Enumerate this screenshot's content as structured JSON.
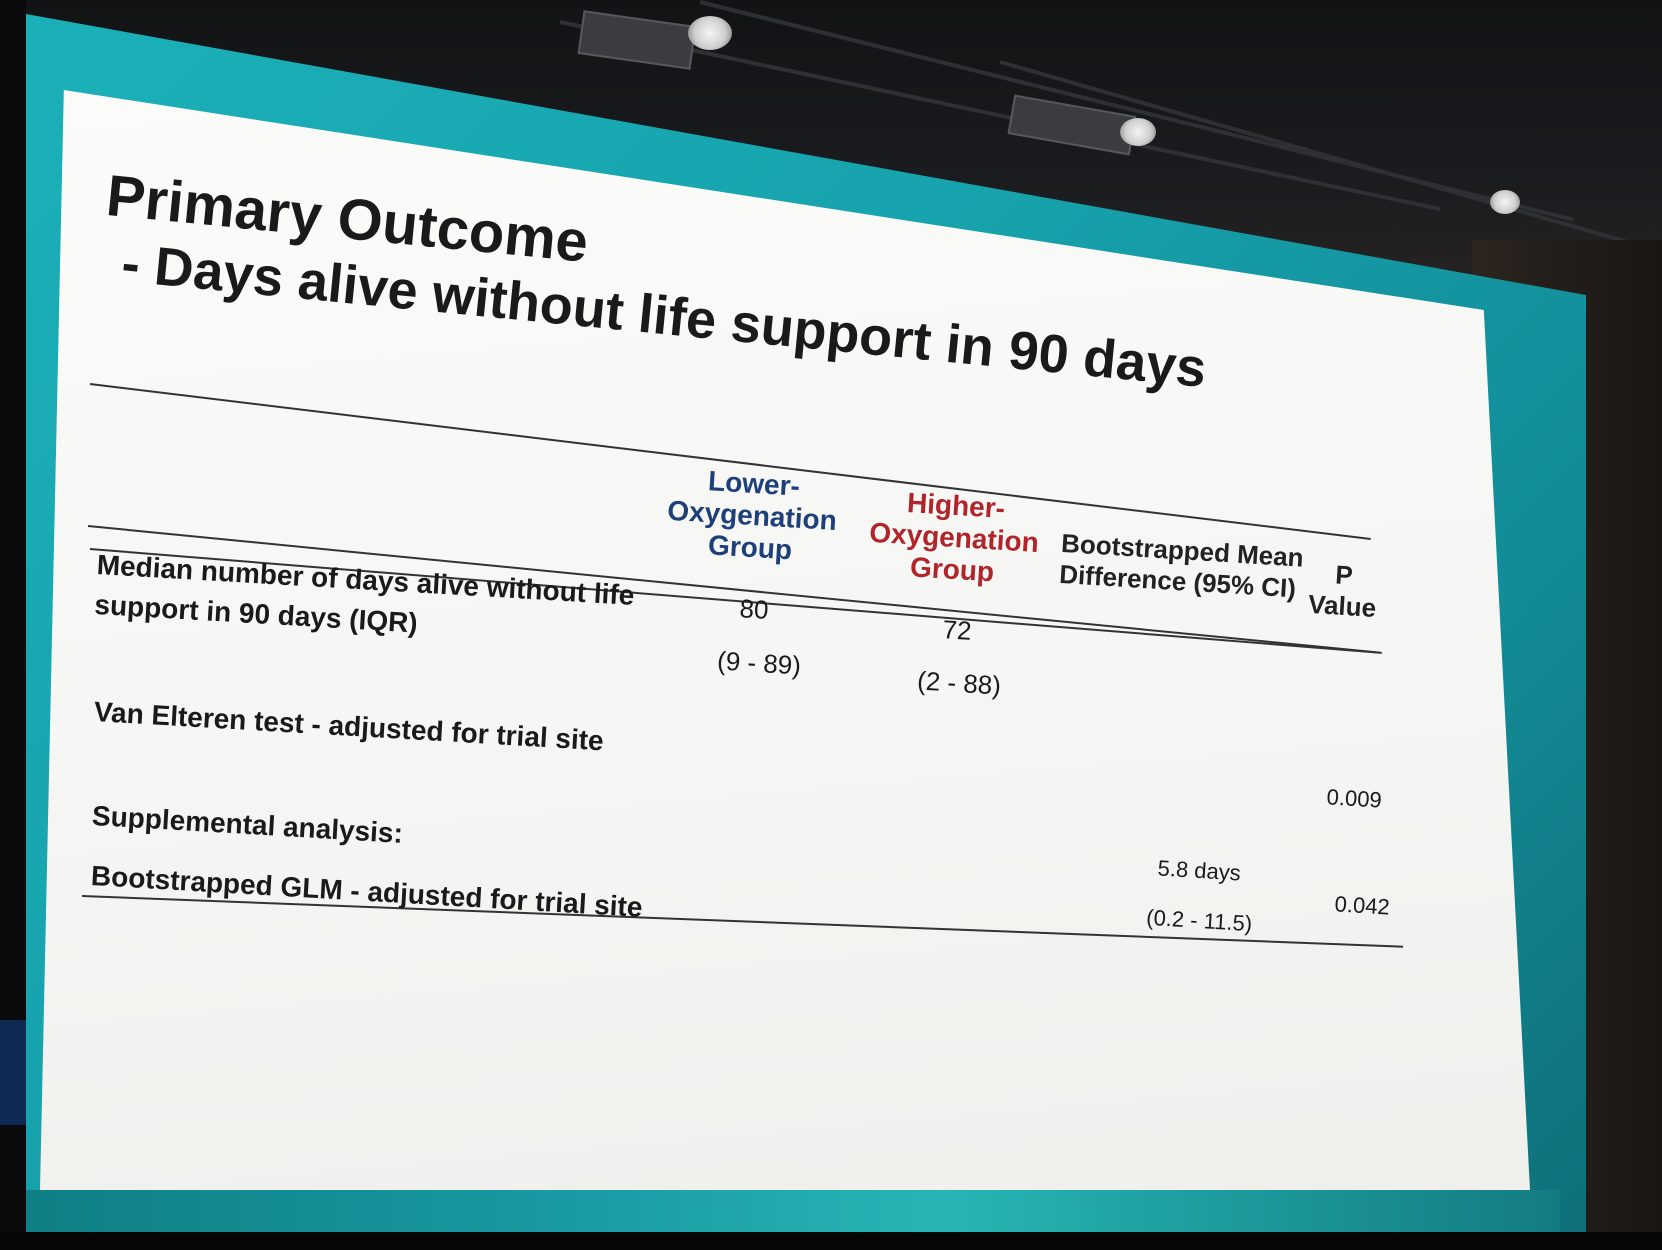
{
  "slide": {
    "title": "Primary Outcome",
    "subtitle": "- Days alive without life support in 90 days",
    "table": {
      "headers": {
        "lower_line1": "Lower-",
        "lower_line2": "Oxygenation",
        "lower_line3": "Group",
        "higher_line1": "Higher-",
        "higher_line2": "Oxygenation",
        "higher_line3": "Group",
        "diff_line1": "Bootstrapped Mean",
        "diff_line2": "Difference (95% CI)",
        "p_line1": "P",
        "p_line2": "Value"
      },
      "rows": [
        {
          "label_line1": "Median number of days alive without life",
          "label_line2": "support in 90 days (IQR)",
          "lower_value": "80",
          "lower_iqr": "(9 - 89)",
          "higher_value": "72",
          "higher_iqr": "(2 - 88)"
        },
        {
          "label": "Van Elteren test - adjusted for trial site",
          "p_value": "0.009"
        },
        {
          "label": "Supplemental analysis:"
        },
        {
          "label": "Bootstrapped GLM - adjusted for trial site",
          "diff_value": "5.8 days",
          "diff_ci": "(0.2 - 11.5)",
          "p_value": "0.042"
        }
      ]
    }
  },
  "colors": {
    "lower_group": "#1d3f7a",
    "higher_group": "#b0242a",
    "screen_backdrop": "#17a3ad",
    "slide_background": "#f7f7f5"
  }
}
